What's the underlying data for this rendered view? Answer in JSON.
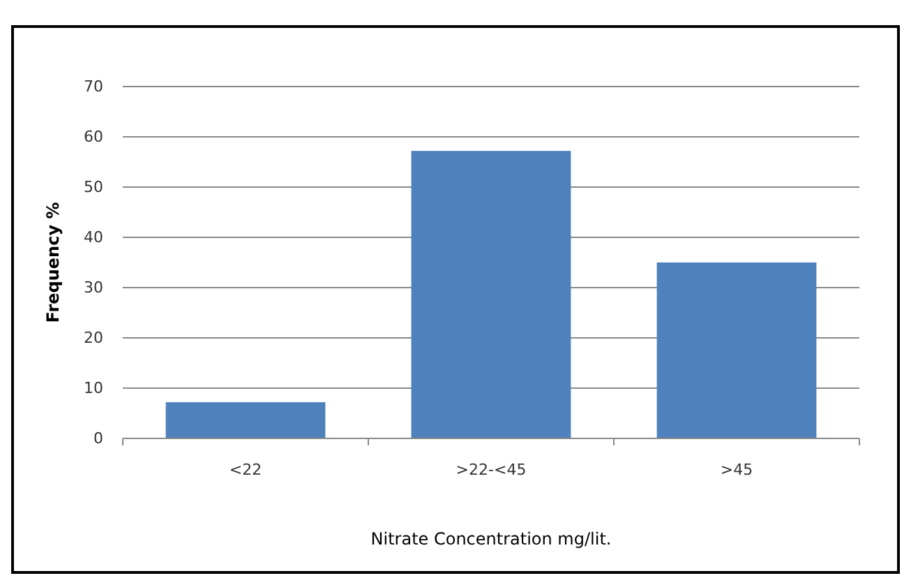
{
  "chart_data": {
    "type": "bar",
    "xlabel": "Nitrate Concentration mg/lit.",
    "ylabel": "Frequency %",
    "categories": [
      "<22",
      ">22-<45",
      ">45"
    ],
    "values": [
      7.2,
      57.2,
      35
    ],
    "color": "#4f81bd",
    "ylim": [
      0,
      70
    ],
    "yticks": [
      0,
      10,
      20,
      30,
      40,
      50,
      60,
      70
    ],
    "grid": "y"
  }
}
